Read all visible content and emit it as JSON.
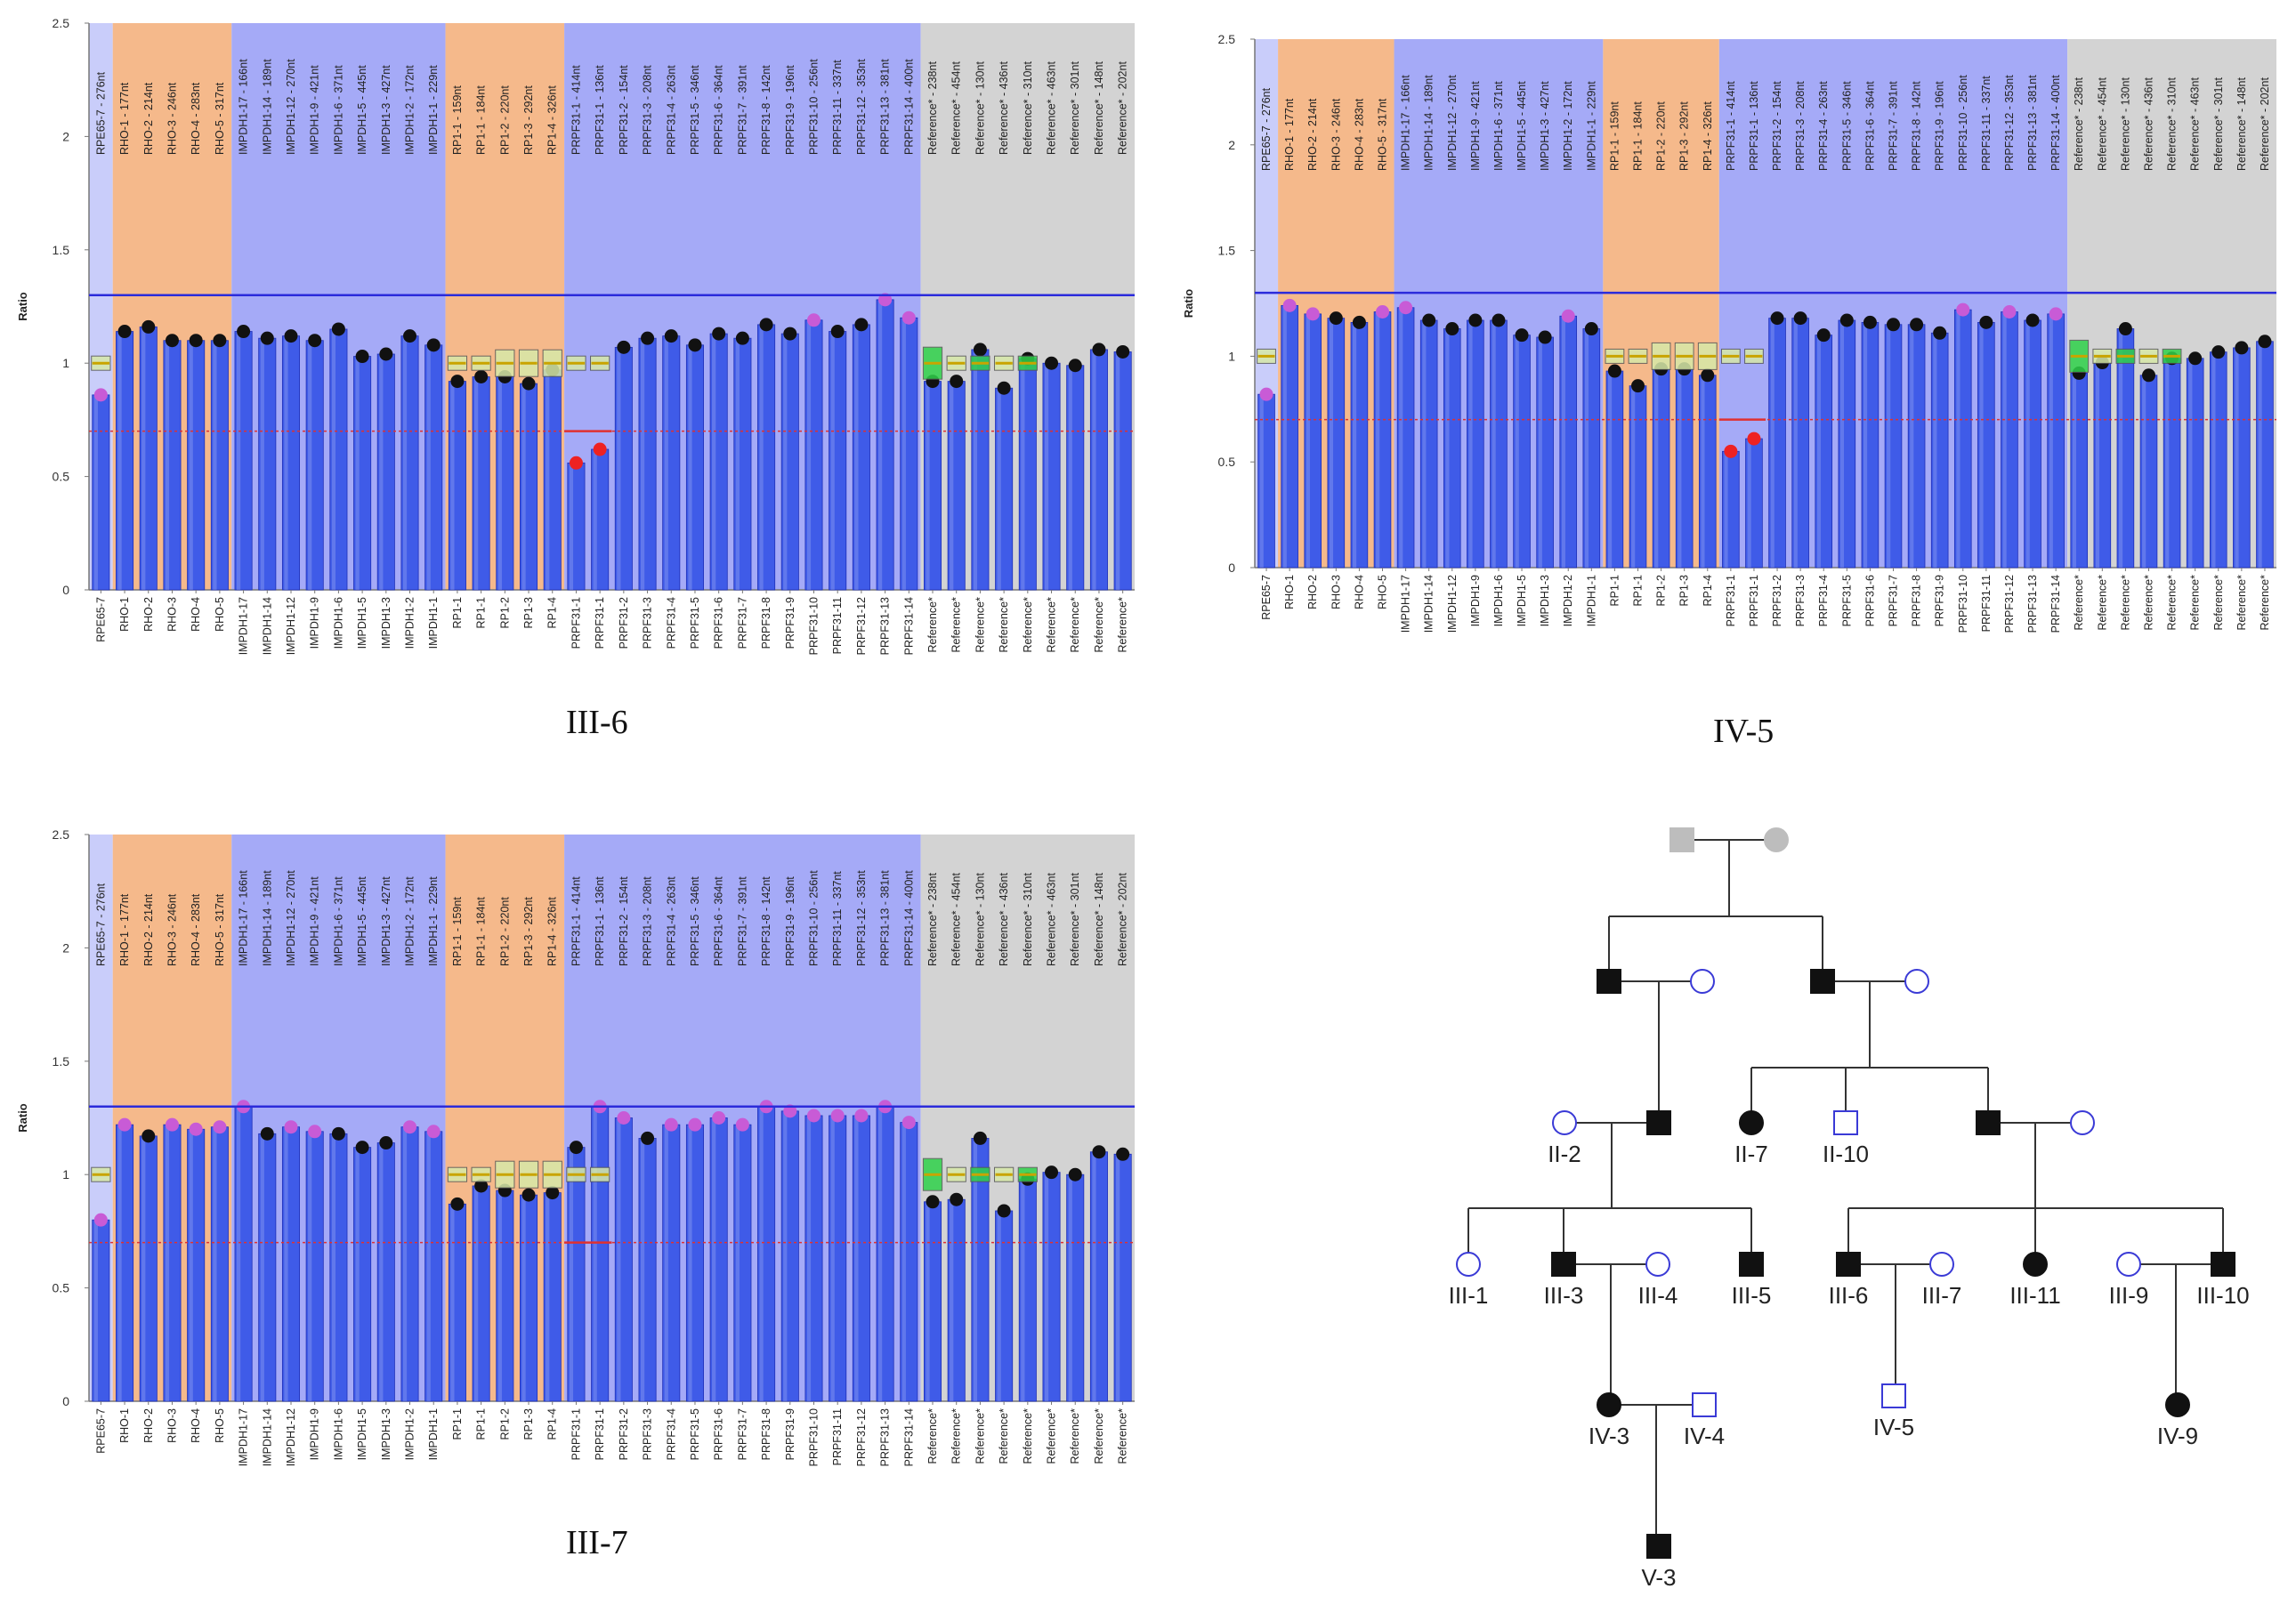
{
  "chart_data": [
    {
      "type": "bar",
      "title": "III-6",
      "xlabel": "",
      "ylabel": "Ratio",
      "ylim": [
        0,
        2.5
      ],
      "yticks": [
        "0",
        "0.5",
        "1",
        "1.5",
        "2",
        "2.5"
      ],
      "upper_threshold": 1.3,
      "lower_threshold": 0.7,
      "categories": [
        "RPE65-7",
        "RHO-1",
        "RHO-2",
        "RHO-3",
        "RHO-4",
        "RHO-5",
        "IMPDH1-17",
        "IMPDH1-14",
        "IMPDH1-12",
        "IMPDH1-9",
        "IMPDH1-6",
        "IMPDH1-5",
        "IMPDH1-3",
        "IMPDH1-2",
        "IMPDH1-1",
        "RP1-1",
        "RP1-1",
        "RP1-2",
        "RP1-3",
        "RP1-4",
        "PRPF31-1",
        "PRPF31-1",
        "PRPF31-2",
        "PRPF31-3",
        "PRPF31-4",
        "PRPF31-5",
        "PRPF31-6",
        "PRPF31-7",
        "PRPF31-8",
        "PRPF31-9",
        "PRPF31-10",
        "PRPF31-11",
        "PRPF31-12",
        "PRPF31-13",
        "PRPF31-14",
        "Reference*",
        "Reference*",
        "Reference*",
        "Reference*",
        "Reference*",
        "Reference*",
        "Reference*",
        "Reference*",
        "Reference*"
      ],
      "probe_labels": [
        "RPE65-7 - 276nt",
        "RHO-1 - 177nt",
        "RHO-2 - 214nt",
        "RHO-3 - 246nt",
        "RHO-4 - 283nt",
        "RHO-5 - 317nt",
        "IMPDH1-17 - 166nt",
        "IMPDH1-14 - 189nt",
        "IMPDH1-12 - 270nt",
        "IMPDH1-9 - 421nt",
        "IMPDH1-6 - 371nt",
        "IMPDH1-5 - 445nt",
        "IMPDH1-3 - 427nt",
        "IMPDH1-2 - 172nt",
        "IMPDH1-1 - 229nt",
        "RP1-1 - 159nt",
        "RP1-1 - 184nt",
        "RP1-2 - 220nt",
        "RP1-3 - 292nt",
        "RP1-4 - 326nt",
        "PRPF31-1 - 414nt",
        "PRPF31-1 - 136nt",
        "PRPF31-2 - 154nt",
        "PRPF31-3 - 208nt",
        "PRPF31-4 - 263nt",
        "PRPF31-5 - 346nt",
        "PRPF31-6 - 364nt",
        "PRPF31-7 - 391nt",
        "PRPF31-8 - 142nt",
        "PRPF31-9 - 196nt",
        "PRPF31-10 - 256nt",
        "PRPF31-11 - 337nt",
        "PRPF31-12 - 353nt",
        "PRPF31-13 - 381nt",
        "PRPF31-14 - 400nt",
        "Reference* - 238nt",
        "Reference* - 454nt",
        "Reference* - 130nt",
        "Reference* - 436nt",
        "Reference* - 310nt",
        "Reference* - 463nt",
        "Reference* - 301nt",
        "Reference* - 148nt",
        "Reference* - 202nt"
      ],
      "values": [
        0.86,
        1.14,
        1.16,
        1.1,
        1.1,
        1.1,
        1.14,
        1.11,
        1.12,
        1.1,
        1.15,
        1.03,
        1.04,
        1.12,
        1.08,
        0.92,
        0.94,
        0.94,
        0.91,
        0.97,
        0.56,
        0.62,
        1.07,
        1.11,
        1.12,
        1.08,
        1.13,
        1.11,
        1.17,
        1.13,
        1.19,
        1.14,
        1.17,
        1.28,
        1.2,
        0.92,
        0.92,
        1.06,
        0.89,
        1.02,
        1.0,
        0.99,
        1.06,
        1.05
      ]
    },
    {
      "type": "bar",
      "title": "IV-5",
      "xlabel": "",
      "ylabel": "Ratio",
      "ylim": [
        0,
        2.5
      ],
      "yticks": [
        "0",
        "0.5",
        "1",
        "1.5",
        "2",
        "2.5"
      ],
      "upper_threshold": 1.3,
      "lower_threshold": 0.7,
      "categories": [
        "RPE65-7",
        "RHO-1",
        "RHO-2",
        "RHO-3",
        "RHO-4",
        "RHO-5",
        "IMPDH1-17",
        "IMPDH1-14",
        "IMPDH1-12",
        "IMPDH1-9",
        "IMPDH1-6",
        "IMPDH1-5",
        "IMPDH1-3",
        "IMPDH1-2",
        "IMPDH1-1",
        "RP1-1",
        "RP1-1",
        "RP1-2",
        "RP1-3",
        "RP1-4",
        "PRPF31-1",
        "PRPF31-1",
        "PRPF31-2",
        "PRPF31-3",
        "PRPF31-4",
        "PRPF31-5",
        "PRPF31-6",
        "PRPF31-7",
        "PRPF31-8",
        "PRPF31-9",
        "PRPF31-10",
        "PRPF31-11",
        "PRPF31-12",
        "PRPF31-13",
        "PRPF31-14",
        "Reference*",
        "Reference*",
        "Reference*",
        "Reference*",
        "Reference*",
        "Reference*",
        "Reference*",
        "Reference*",
        "Reference*"
      ],
      "probe_labels": [
        "RPE65-7 - 276nt",
        "RHO-1 - 177nt",
        "RHO-2 - 214nt",
        "RHO-3 - 246nt",
        "RHO-4 - 283nt",
        "RHO-5 - 317nt",
        "IMPDH1-17 - 166nt",
        "IMPDH1-14 - 189nt",
        "IMPDH1-12 - 270nt",
        "IMPDH1-9 - 421nt",
        "IMPDH1-6 - 371nt",
        "IMPDH1-5 - 445nt",
        "IMPDH1-3 - 427nt",
        "IMPDH1-2 - 172nt",
        "IMPDH1-1 - 229nt",
        "RP1-1 - 159nt",
        "RP1-1 - 184nt",
        "RP1-2 - 220nt",
        "RP1-3 - 292nt",
        "RP1-4 - 326nt",
        "PRPF31-1 - 414nt",
        "PRPF31-1 - 136nt",
        "PRPF31-2 - 154nt",
        "PRPF31-3 - 208nt",
        "PRPF31-4 - 263nt",
        "PRPF31-5 - 346nt",
        "PRPF31-6 - 364nt",
        "PRPF31-7 - 391nt",
        "PRPF31-8 - 142nt",
        "PRPF31-9 - 196nt",
        "PRPF31-10 - 256nt",
        "PRPF31-11 - 337nt",
        "PRPF31-12 - 353nt",
        "PRPF31-13 - 381nt",
        "PRPF31-14 - 400nt",
        "Reference* - 238nt",
        "Reference* - 454nt",
        "Reference* - 130nt",
        "Reference* - 436nt",
        "Reference* - 310nt",
        "Reference* - 463nt",
        "Reference* - 301nt",
        "Reference* - 148nt",
        "Reference* - 202nt"
      ],
      "values": [
        0.82,
        1.24,
        1.2,
        1.18,
        1.16,
        1.21,
        1.23,
        1.17,
        1.13,
        1.17,
        1.17,
        1.1,
        1.09,
        1.19,
        1.13,
        0.93,
        0.86,
        0.94,
        0.94,
        0.91,
        0.55,
        0.61,
        1.18,
        1.18,
        1.1,
        1.17,
        1.16,
        1.15,
        1.15,
        1.11,
        1.22,
        1.16,
        1.21,
        1.17,
        1.2,
        0.92,
        0.97,
        1.13,
        0.91,
        0.99,
        0.99,
        1.02,
        1.04,
        1.07
      ]
    },
    {
      "type": "bar",
      "title": "III-7",
      "xlabel": "",
      "ylabel": "Ratio",
      "ylim": [
        0,
        2.5
      ],
      "yticks": [
        "0",
        "0.5",
        "1",
        "1.5",
        "2",
        "2.5"
      ],
      "upper_threshold": 1.3,
      "lower_threshold": 0.7,
      "categories": [
        "RPE65-7",
        "RHO-1",
        "RHO-2",
        "RHO-3",
        "RHO-4",
        "RHO-5",
        "IMPDH1-17",
        "IMPDH1-14",
        "IMPDH1-12",
        "IMPDH1-9",
        "IMPDH1-6",
        "IMPDH1-5",
        "IMPDH1-3",
        "IMPDH1-2",
        "IMPDH1-1",
        "RP1-1",
        "RP1-1",
        "RP1-2",
        "RP1-3",
        "RP1-4",
        "PRPF31-1",
        "PRPF31-1",
        "PRPF31-2",
        "PRPF31-3",
        "PRPF31-4",
        "PRPF31-5",
        "PRPF31-6",
        "PRPF31-7",
        "PRPF31-8",
        "PRPF31-9",
        "PRPF31-10",
        "PRPF31-11",
        "PRPF31-12",
        "PRPF31-13",
        "PRPF31-14",
        "Reference*",
        "Reference*",
        "Reference*",
        "Reference*",
        "Reference*",
        "Reference*",
        "Reference*",
        "Reference*",
        "Reference*"
      ],
      "probe_labels": [
        "RPE65-7 - 276nt",
        "RHO-1 - 177nt",
        "RHO-2 - 214nt",
        "RHO-3 - 246nt",
        "RHO-4 - 283nt",
        "RHO-5 - 317nt",
        "IMPDH1-17 - 166nt",
        "IMPDH1-14 - 189nt",
        "IMPDH1-12 - 270nt",
        "IMPDH1-9 - 421nt",
        "IMPDH1-6 - 371nt",
        "IMPDH1-5 - 445nt",
        "IMPDH1-3 - 427nt",
        "IMPDH1-2 - 172nt",
        "IMPDH1-1 - 229nt",
        "RP1-1 - 159nt",
        "RP1-1 - 184nt",
        "RP1-2 - 220nt",
        "RP1-3 - 292nt",
        "RP1-4 - 326nt",
        "PRPF31-1 - 414nt",
        "PRPF31-1 - 136nt",
        "PRPF31-2 - 154nt",
        "PRPF31-3 - 208nt",
        "PRPF31-4 - 263nt",
        "PRPF31-5 - 346nt",
        "PRPF31-6 - 364nt",
        "PRPF31-7 - 391nt",
        "PRPF31-8 - 142nt",
        "PRPF31-9 - 196nt",
        "PRPF31-10 - 256nt",
        "PRPF31-11 - 337nt",
        "PRPF31-12 - 353nt",
        "PRPF31-13 - 381nt",
        "PRPF31-14 - 400nt",
        "Reference* - 238nt",
        "Reference* - 454nt",
        "Reference* - 130nt",
        "Reference* - 436nt",
        "Reference* - 310nt",
        "Reference* - 463nt",
        "Reference* - 301nt",
        "Reference* - 148nt",
        "Reference* - 202nt"
      ],
      "values": [
        0.8,
        1.22,
        1.17,
        1.22,
        1.2,
        1.21,
        1.3,
        1.18,
        1.21,
        1.19,
        1.18,
        1.12,
        1.14,
        1.21,
        1.19,
        0.87,
        0.95,
        0.93,
        0.91,
        0.92,
        1.12,
        1.3,
        1.25,
        1.16,
        1.22,
        1.22,
        1.25,
        1.22,
        1.3,
        1.28,
        1.26,
        1.26,
        1.26,
        1.3,
        1.23,
        0.88,
        0.89,
        1.16,
        0.84,
        0.98,
        1.01,
        1.0,
        1.1,
        1.09
      ]
    }
  ],
  "titles": {
    "iii6": "III-6",
    "iv5": "IV-5",
    "iii7": "III-7"
  },
  "pedigree": {
    "individuals": [
      {
        "id": "I-1",
        "label": "",
        "sex": "male",
        "affected": true,
        "deceased_style": true
      },
      {
        "id": "I-2",
        "label": "",
        "sex": "female",
        "affected": true,
        "deceased_style": true
      },
      {
        "id": "II-1",
        "label": "",
        "sex": "male",
        "affected": true
      },
      {
        "id": "II-3",
        "label": "",
        "sex": "female",
        "affected": false
      },
      {
        "id": "II-5",
        "label": "",
        "sex": "male",
        "affected": true
      },
      {
        "id": "II-6",
        "label": "",
        "sex": "female",
        "affected": false
      },
      {
        "id": "II-2",
        "label": "II-2",
        "sex": "female",
        "affected": false
      },
      {
        "id": "II-4",
        "label": "",
        "sex": "male",
        "affected": true
      },
      {
        "id": "II-7",
        "label": "II-7",
        "sex": "female",
        "affected": true
      },
      {
        "id": "II-10",
        "label": "II-10",
        "sex": "male",
        "affected": false
      },
      {
        "id": "II-8",
        "label": "",
        "sex": "male",
        "affected": true
      },
      {
        "id": "II-9",
        "label": "",
        "sex": "female",
        "affected": false
      },
      {
        "id": "III-1",
        "label": "III-1",
        "sex": "female",
        "affected": false
      },
      {
        "id": "III-3",
        "label": "III-3",
        "sex": "male",
        "affected": true
      },
      {
        "id": "III-4",
        "label": "III-4",
        "sex": "female",
        "affected": false
      },
      {
        "id": "III-5",
        "label": "III-5",
        "sex": "male",
        "affected": true
      },
      {
        "id": "III-6",
        "label": "III-6",
        "sex": "male",
        "affected": true
      },
      {
        "id": "III-7",
        "label": "III-7",
        "sex": "female",
        "affected": false
      },
      {
        "id": "III-11",
        "label": "III-11",
        "sex": "female",
        "affected": true
      },
      {
        "id": "III-9",
        "label": "III-9",
        "sex": "female",
        "affected": false
      },
      {
        "id": "III-10",
        "label": "III-10",
        "sex": "male",
        "affected": true
      },
      {
        "id": "IV-3",
        "label": "IV-3",
        "sex": "female",
        "affected": true
      },
      {
        "id": "IV-4",
        "label": "IV-4",
        "sex": "male",
        "affected": false
      },
      {
        "id": "IV-5",
        "label": "IV-5",
        "sex": "male",
        "affected": false
      },
      {
        "id": "IV-9",
        "label": "IV-9",
        "sex": "female",
        "affected": true
      },
      {
        "id": "V-3",
        "label": "V-3",
        "sex": "male",
        "affected": true
      }
    ]
  },
  "colors": {
    "bar": "#3f5be8",
    "bar_edge": "#1e2fb8",
    "region_rpe65": "#c9cdfa",
    "region_rho": "#f5b98b",
    "region_impdh1": "#a5aaf7",
    "region_rp1": "#f5b98b",
    "region_prpf31": "#a5aaf7",
    "region_reference": "#d3d3d3",
    "upper_line": "#2b2bdb",
    "lower_line": "#e03030",
    "dot_normal": "#111111",
    "dot_high": "#c85bd6",
    "dot_low": "#ee2222",
    "pedigree_affected": "#111111",
    "pedigree_unaffected": "#3a3ad6",
    "pedigree_ancestor": "#bdbdbd"
  }
}
